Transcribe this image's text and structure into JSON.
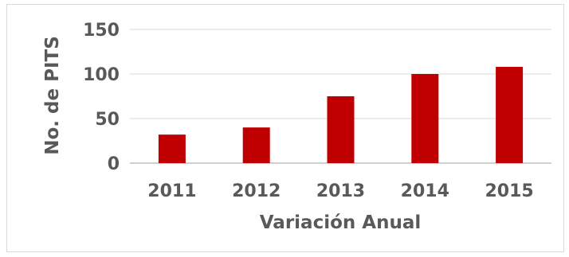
{
  "chart_data": {
    "type": "bar",
    "categories": [
      "2011",
      "2012",
      "2013",
      "2014",
      "2015"
    ],
    "values": [
      32,
      40,
      75,
      100,
      108
    ],
    "xlabel": "Variación Anual",
    "ylabel": "No. de PITS",
    "ylim": [
      0,
      150
    ],
    "yticks": [
      "0",
      "50",
      "100",
      "150"
    ],
    "grid": true,
    "colors": {
      "bar": "#c00000",
      "grid": "#d9d9d9",
      "axis": "#bfbfbf",
      "text": "#595959"
    }
  }
}
